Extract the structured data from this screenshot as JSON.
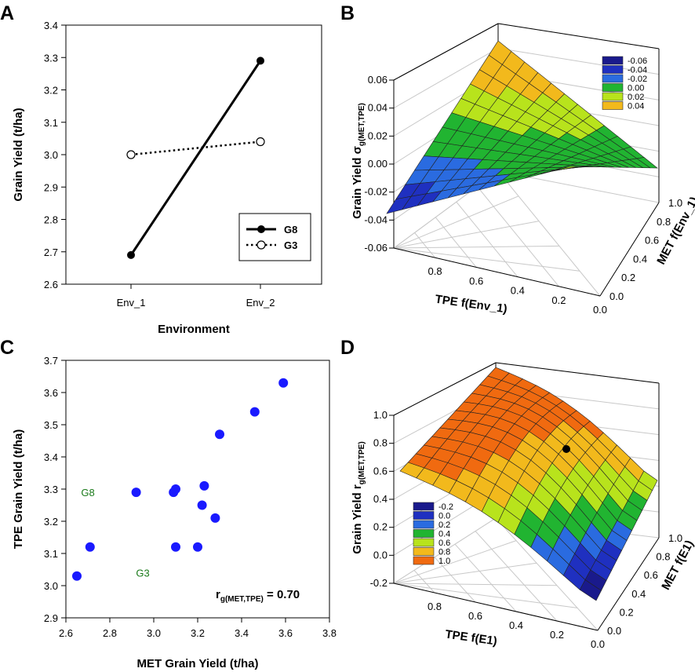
{
  "chart_data": [
    {
      "panel": "A",
      "type": "line",
      "xlabel": "Environment",
      "ylabel": "Grain Yield (t/ha)",
      "categories": [
        "Env_1",
        "Env_2"
      ],
      "ylim": [
        2.6,
        3.4
      ],
      "yticks": [
        "2.6",
        "2.7",
        "2.8",
        "2.9",
        "3.0",
        "3.1",
        "3.2",
        "3.3",
        "3.4"
      ],
      "series": [
        {
          "name": "G8",
          "values": [
            2.69,
            3.29
          ],
          "style": "solid",
          "marker": "filled-circle"
        },
        {
          "name": "G3",
          "values": [
            3.0,
            3.04
          ],
          "style": "dotted",
          "marker": "open-circle"
        }
      ],
      "legend": "bottom-right"
    },
    {
      "panel": "B",
      "type": "surface",
      "xlabel": "TPE f(Env_1)",
      "ylabel": "MET f(Env_1)",
      "zlabel_main": "Grain Yield σ",
      "zlabel_sub": "g(MET,TPE)",
      "xticks": [
        "0.0",
        "0.2",
        "0.4",
        "0.6",
        "0.8"
      ],
      "yticks": [
        "0.0",
        "0.2",
        "0.4",
        "0.6",
        "0.8",
        "1.0"
      ],
      "zticks": [
        "-0.06",
        "-0.04",
        "-0.02",
        "0.00",
        "0.02",
        "0.04",
        "0.06"
      ],
      "zlim": [
        -0.06,
        0.06
      ],
      "legend": {
        "labels": [
          "-0.06",
          "-0.04",
          "-0.02",
          "0.00",
          "0.02",
          "0.04"
        ],
        "colors": [
          "#1a1a8c",
          "#1f30c0",
          "#2a6be0",
          "#21b431",
          "#b8e31c",
          "#f2b91c"
        ]
      }
    },
    {
      "panel": "C",
      "type": "scatter",
      "xlabel": "MET Grain Yield (t/ha)",
      "ylabel": "TPE Grain Yield (t/ha)",
      "xlim": [
        2.6,
        3.8
      ],
      "ylim": [
        2.9,
        3.7
      ],
      "xticks": [
        "2.6",
        "2.8",
        "3.0",
        "3.2",
        "3.4",
        "3.6",
        "3.8"
      ],
      "yticks": [
        "2.9",
        "3.0",
        "3.1",
        "3.2",
        "3.3",
        "3.4",
        "3.5",
        "3.6",
        "3.7"
      ],
      "x": [
        2.65,
        2.71,
        2.92,
        3.09,
        3.1,
        3.1,
        3.2,
        3.22,
        3.23,
        3.28,
        3.3,
        3.46,
        3.59
      ],
      "y": [
        3.03,
        3.12,
        3.29,
        3.29,
        3.3,
        3.12,
        3.12,
        3.25,
        3.31,
        3.21,
        3.47,
        3.54,
        3.63
      ],
      "annotations": [
        {
          "text": "G8",
          "x": 2.7,
          "y": 3.29
        },
        {
          "text": "G3",
          "x": 2.95,
          "y": 3.04
        }
      ],
      "stat_main": "r",
      "stat_sub": "g(MET,TPE)",
      "stat_value": " = 0.70"
    },
    {
      "panel": "D",
      "type": "surface",
      "xlabel": "TPE f(E1)",
      "ylabel": "MET f(E1)",
      "zlabel_main": "Grain Yield r",
      "zlabel_sub": "g(MET,TPE)",
      "xticks": [
        "0.0",
        "0.2",
        "0.4",
        "0.6",
        "0.8"
      ],
      "yticks": [
        "0.0",
        "0.2",
        "0.4",
        "0.6",
        "0.8",
        "1.0"
      ],
      "zticks": [
        "-0.2",
        "0.0",
        "0.2",
        "0.4",
        "0.6",
        "0.8",
        "1.0"
      ],
      "zlim": [
        -0.2,
        1.0
      ],
      "legend": {
        "labels": [
          "-0.2",
          "0.0",
          "0.2",
          "0.4",
          "0.6",
          "0.8",
          "1.0"
        ],
        "colors": [
          "#1a1a8c",
          "#1f30c0",
          "#2a6be0",
          "#21b431",
          "#b8e31c",
          "#f2b91c",
          "#f06a10"
        ]
      }
    }
  ],
  "panel_letters": [
    "A",
    "B",
    "C",
    "D"
  ]
}
